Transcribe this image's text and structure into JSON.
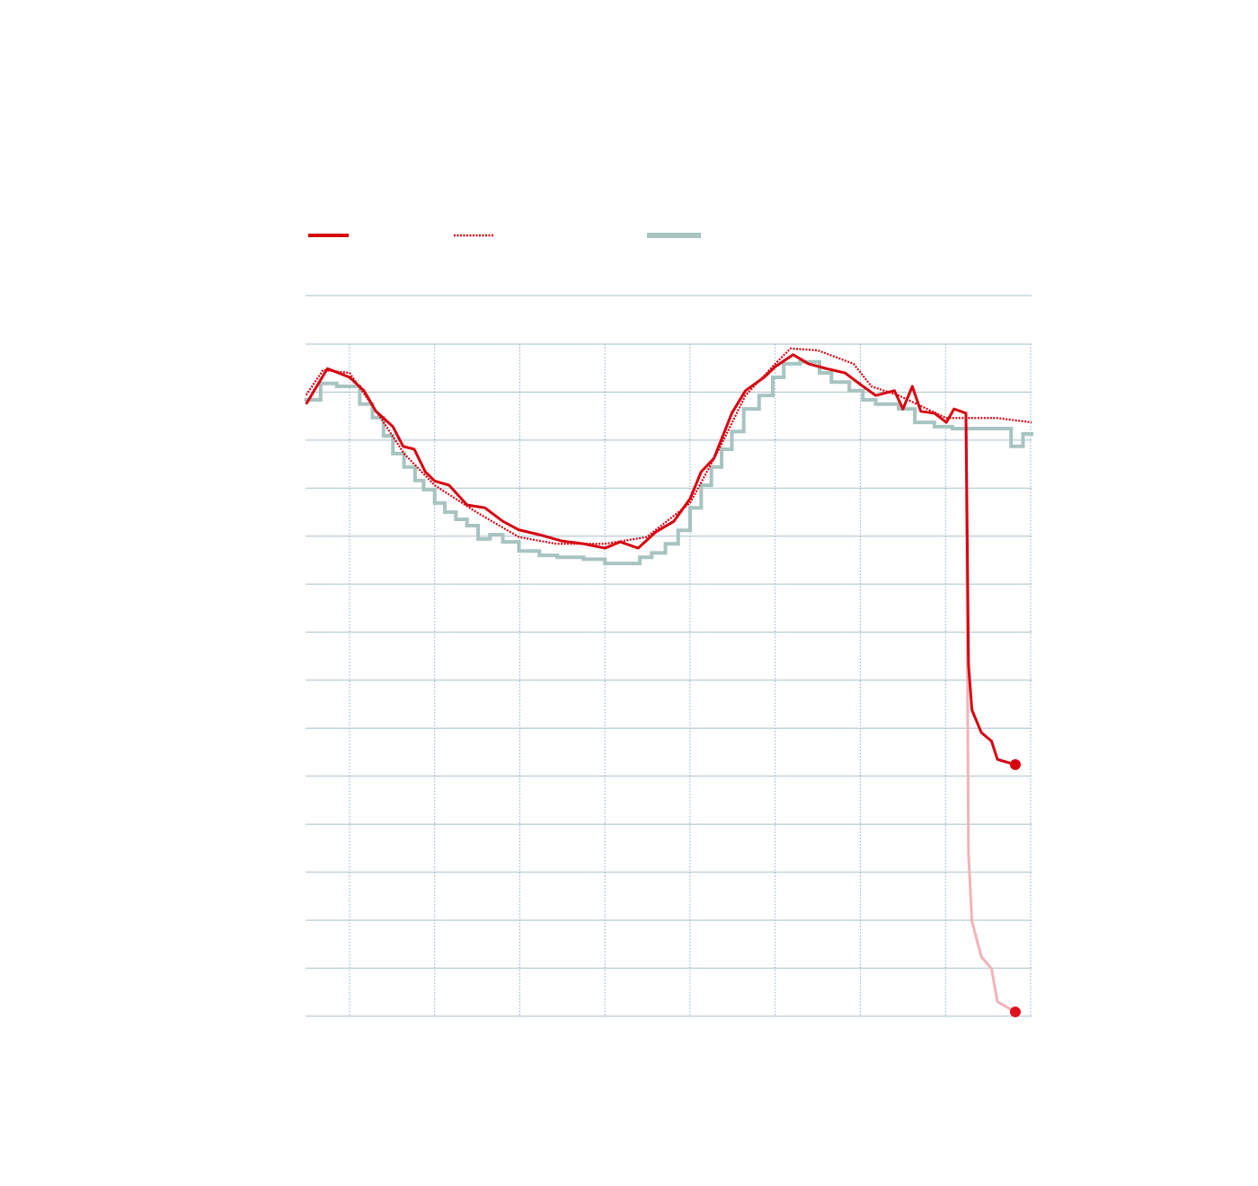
{
  "chart_data": {
    "type": "line",
    "xlim": [
      -0.5,
      8
    ],
    "xticks": [
      0,
      1,
      2,
      3,
      4,
      5,
      6,
      7,
      8
    ],
    "ylim": [
      0,
      14
    ],
    "yticks": [
      0,
      1,
      2,
      3,
      4,
      5,
      6,
      7,
      8,
      9,
      10,
      11,
      12,
      13,
      14
    ],
    "grid": true,
    "series": [
      {
        "color": "#d7000f",
        "style": "solid",
        "legend": true,
        "marker_end": true,
        "x": [
          -0.51,
          -0.26,
          0,
          0.17,
          0.31,
          0.51,
          0.63,
          0.76,
          0.89,
          1.0,
          1.17,
          1.38,
          1.59,
          1.8,
          1.99,
          2.23,
          2.49,
          2.75,
          3.0,
          3.18,
          3.39,
          3.6,
          3.81,
          4.0,
          4.13,
          4.28,
          4.49,
          4.65,
          4.87,
          5.0,
          5.21,
          5.39,
          5.6,
          5.82,
          6.0,
          6.18,
          6.4,
          6.5,
          6.61,
          6.71,
          6.87,
          7.01,
          7.1,
          7.24,
          7.27,
          7.31,
          7.42,
          7.54,
          7.61,
          7.82
        ],
        "values": [
          12.75,
          13.49,
          13.31,
          13.03,
          12.6,
          12.28,
          11.87,
          11.81,
          11.34,
          11.15,
          11.06,
          10.65,
          10.59,
          10.31,
          10.13,
          10.03,
          9.9,
          9.84,
          9.75,
          9.88,
          9.75,
          10.09,
          10.31,
          10.78,
          11.34,
          11.62,
          12.56,
          13.03,
          13.31,
          13.53,
          13.78,
          13.59,
          13.49,
          13.4,
          13.16,
          12.93,
          13.03,
          12.65,
          13.12,
          12.6,
          12.56,
          12.37,
          12.65,
          12.56,
          7.32,
          6.38,
          5.91,
          5.73,
          5.35,
          5.24
        ]
      },
      {
        "color": "#d7000f",
        "style": "dotted",
        "legend": true,
        "x": [
          -0.51,
          -0.31,
          0,
          0.33,
          0.64,
          1.0,
          1.49,
          1.99,
          2.43,
          3.0,
          3.49,
          4.0,
          4.34,
          4.65,
          5.0,
          5.18,
          5.5,
          5.92,
          6.13,
          6.45,
          7.01,
          7.61,
          8.01
        ],
        "values": [
          12.94,
          13.46,
          13.4,
          12.56,
          11.72,
          11.06,
          10.5,
          9.98,
          9.84,
          9.84,
          9.98,
          10.69,
          11.81,
          12.93,
          13.59,
          13.91,
          13.87,
          13.59,
          13.12,
          12.93,
          12.46,
          12.46,
          12.37
        ]
      },
      {
        "color": "#a7c4c0",
        "style": "step",
        "legend": true,
        "x": [
          -0.51,
          -0.34,
          -0.15,
          0.12,
          0.27,
          0.4,
          0.51,
          0.64,
          0.77,
          0.87,
          1.0,
          1.12,
          1.25,
          1.38,
          1.51,
          1.65,
          1.8,
          1.99,
          2.23,
          2.44,
          2.75,
          3.0,
          3.41,
          3.55,
          3.71,
          3.86,
          4.0,
          4.13,
          4.25,
          4.37,
          4.49,
          4.63,
          4.81,
          4.97,
          5.1,
          5.29,
          5.52,
          5.66,
          5.87,
          6.03,
          6.18,
          6.45,
          6.64,
          6.87,
          7.08,
          7.4,
          7.61,
          7.77,
          7.91,
          8.01
        ],
        "values": [
          12.84,
          13.18,
          13.12,
          12.75,
          12.47,
          12.09,
          11.72,
          11.44,
          11.16,
          10.97,
          10.69,
          10.5,
          10.35,
          10.22,
          9.94,
          10.03,
          9.88,
          9.69,
          9.6,
          9.56,
          9.52,
          9.43,
          9.56,
          9.65,
          9.84,
          10.12,
          10.59,
          11.06,
          11.44,
          11.81,
          12.18,
          12.65,
          12.93,
          13.31,
          13.59,
          13.63,
          13.4,
          13.21,
          13.03,
          12.84,
          12.75,
          12.65,
          12.37,
          12.28,
          12.24,
          12.24,
          12.24,
          11.87,
          12.13,
          12.13
        ]
      },
      {
        "color": "#f2b3b8",
        "style": "solid",
        "marker_end": true,
        "marker_color": "#e0101e",
        "x": [
          7.24,
          7.27,
          7.31,
          7.42,
          7.54,
          7.61,
          7.82
        ],
        "values": [
          12.56,
          3.39,
          1.98,
          1.24,
          0.99,
          0.3,
          0.09
        ]
      }
    ]
  }
}
